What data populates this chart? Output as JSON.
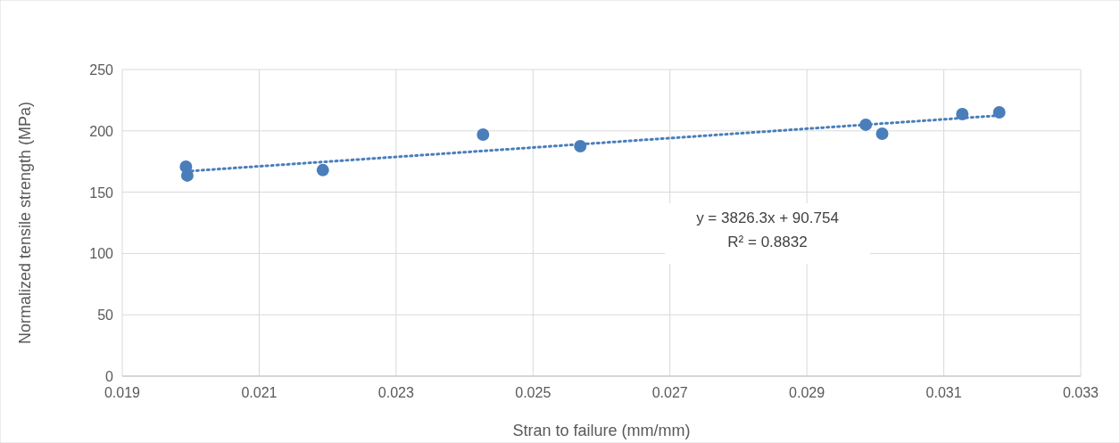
{
  "chart_data": {
    "type": "scatter",
    "xlabel": "Stran to failure (mm/mm)",
    "ylabel": "Normalized tensile strength (MPa)",
    "xlim": [
      0.019,
      0.033
    ],
    "xticks": [
      0.019,
      0.021,
      0.023,
      0.025,
      0.027,
      0.029,
      0.031,
      0.033
    ],
    "ylim": [
      0,
      250
    ],
    "yticks": [
      0,
      50,
      100,
      150,
      200,
      250
    ],
    "grid": true,
    "series": [
      {
        "color": "#4a7ebb",
        "marker": "circle",
        "x": [
          0.01993,
          0.01995,
          0.02193,
          0.02427,
          0.02569,
          0.02986,
          0.0301,
          0.03127,
          0.03181
        ],
        "values": [
          170.8,
          163.6,
          168,
          197,
          187.5,
          205,
          197.7,
          213.7,
          215.1
        ]
      },
      {
        "type": "line",
        "color": "#4a7ebb",
        "line_style": "dotted",
        "x": [
          0.01993,
          0.03181
        ],
        "values": [
          167,
          212.5
        ]
      }
    ],
    "annotations": [
      "y = 3826.3x + 90.754",
      "R² = 0.8832"
    ]
  }
}
